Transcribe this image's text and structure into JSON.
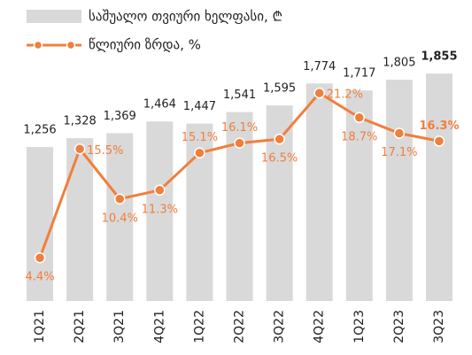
{
  "chart_data": {
    "type": "bar",
    "categories": [
      "1Q21",
      "2Q21",
      "3Q21",
      "4Q21",
      "1Q22",
      "2Q22",
      "3Q22",
      "4Q22",
      "1Q23",
      "2Q23",
      "3Q23"
    ],
    "series": [
      {
        "name": "საშუალო თვიური ხელფასი, ₾",
        "type": "bar",
        "color": "#d9d9d9",
        "values": [
          1256,
          1328,
          1369,
          1464,
          1447,
          1541,
          1595,
          1774,
          1717,
          1805,
          1855
        ],
        "value_labels": [
          "1,256",
          "1,328",
          "1,369",
          "1,464",
          "1,447",
          "1,541",
          "1,595",
          "1,774",
          "1,717",
          "1,805",
          "1,855"
        ]
      },
      {
        "name": "წლიური ზრდა, %",
        "type": "line",
        "axis": "y2",
        "color": "#f07f3c",
        "values": [
          4.4,
          15.5,
          10.4,
          11.3,
          15.1,
          16.1,
          16.5,
          21.2,
          18.7,
          17.1,
          16.3
        ],
        "value_labels": [
          "4.4%",
          "15.5%",
          "10.4%",
          "11.3%",
          "15.1%",
          "16.1%",
          "16.5%",
          "21.2%",
          "18.7%",
          "17.1%",
          "16.3%"
        ]
      }
    ],
    "ylim": [
      0,
      2000
    ],
    "y2lim": [
      0,
      25
    ]
  }
}
